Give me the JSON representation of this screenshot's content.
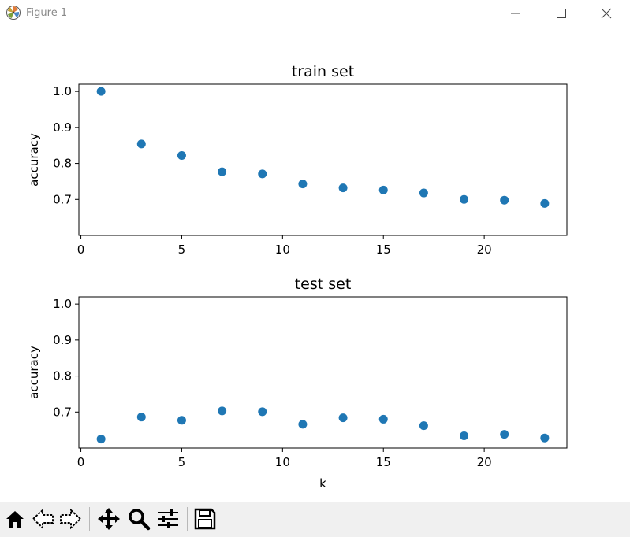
{
  "window": {
    "title": "Figure 1"
  },
  "chart_data": [
    {
      "type": "scatter",
      "title": "train set",
      "xlabel": "",
      "ylabel": "accuracy",
      "xlim": [
        -0.1,
        24.1
      ],
      "ylim": [
        0.6,
        1.02
      ],
      "xticks": [
        0,
        5,
        10,
        15,
        20
      ],
      "yticks": [
        0.7,
        0.8,
        0.9,
        1.0
      ],
      "xtick_labels": [
        "0",
        "5",
        "10",
        "15",
        "20"
      ],
      "ytick_labels": [
        "0.7",
        "0.8",
        "0.9",
        "1.0"
      ],
      "x": [
        1,
        3,
        5,
        7,
        9,
        11,
        13,
        15,
        17,
        19,
        21,
        23
      ],
      "y": [
        1.0,
        0.854,
        0.822,
        0.777,
        0.771,
        0.743,
        0.732,
        0.726,
        0.718,
        0.7,
        0.698,
        0.689
      ],
      "color": "#1f77b4"
    },
    {
      "type": "scatter",
      "title": "test set",
      "xlabel": "k",
      "ylabel": "accuracy",
      "xlim": [
        -0.1,
        24.1
      ],
      "ylim": [
        0.6,
        1.02
      ],
      "xticks": [
        0,
        5,
        10,
        15,
        20
      ],
      "yticks": [
        0.7,
        0.8,
        0.9,
        1.0
      ],
      "xtick_labels": [
        "0",
        "5",
        "10",
        "15",
        "20"
      ],
      "ytick_labels": [
        "0.7",
        "0.8",
        "0.9",
        "1.0"
      ],
      "x": [
        1,
        3,
        5,
        7,
        9,
        11,
        13,
        15,
        17,
        19,
        21,
        23
      ],
      "y": [
        0.625,
        0.686,
        0.677,
        0.703,
        0.701,
        0.666,
        0.684,
        0.68,
        0.662,
        0.634,
        0.638,
        0.628
      ],
      "color": "#1f77b4"
    }
  ],
  "toolbar": {
    "buttons": [
      {
        "name": "home-button",
        "icon": "home-icon"
      },
      {
        "name": "back-button",
        "icon": "left-arrow-icon"
      },
      {
        "name": "forward-button",
        "icon": "right-arrow-icon"
      },
      {
        "name": "pan-button",
        "icon": "move-icon"
      },
      {
        "name": "zoom-button",
        "icon": "magnifier-icon"
      },
      {
        "name": "configure-subplots-button",
        "icon": "sliders-icon"
      },
      {
        "name": "save-button",
        "icon": "floppy-disk-icon"
      }
    ]
  }
}
